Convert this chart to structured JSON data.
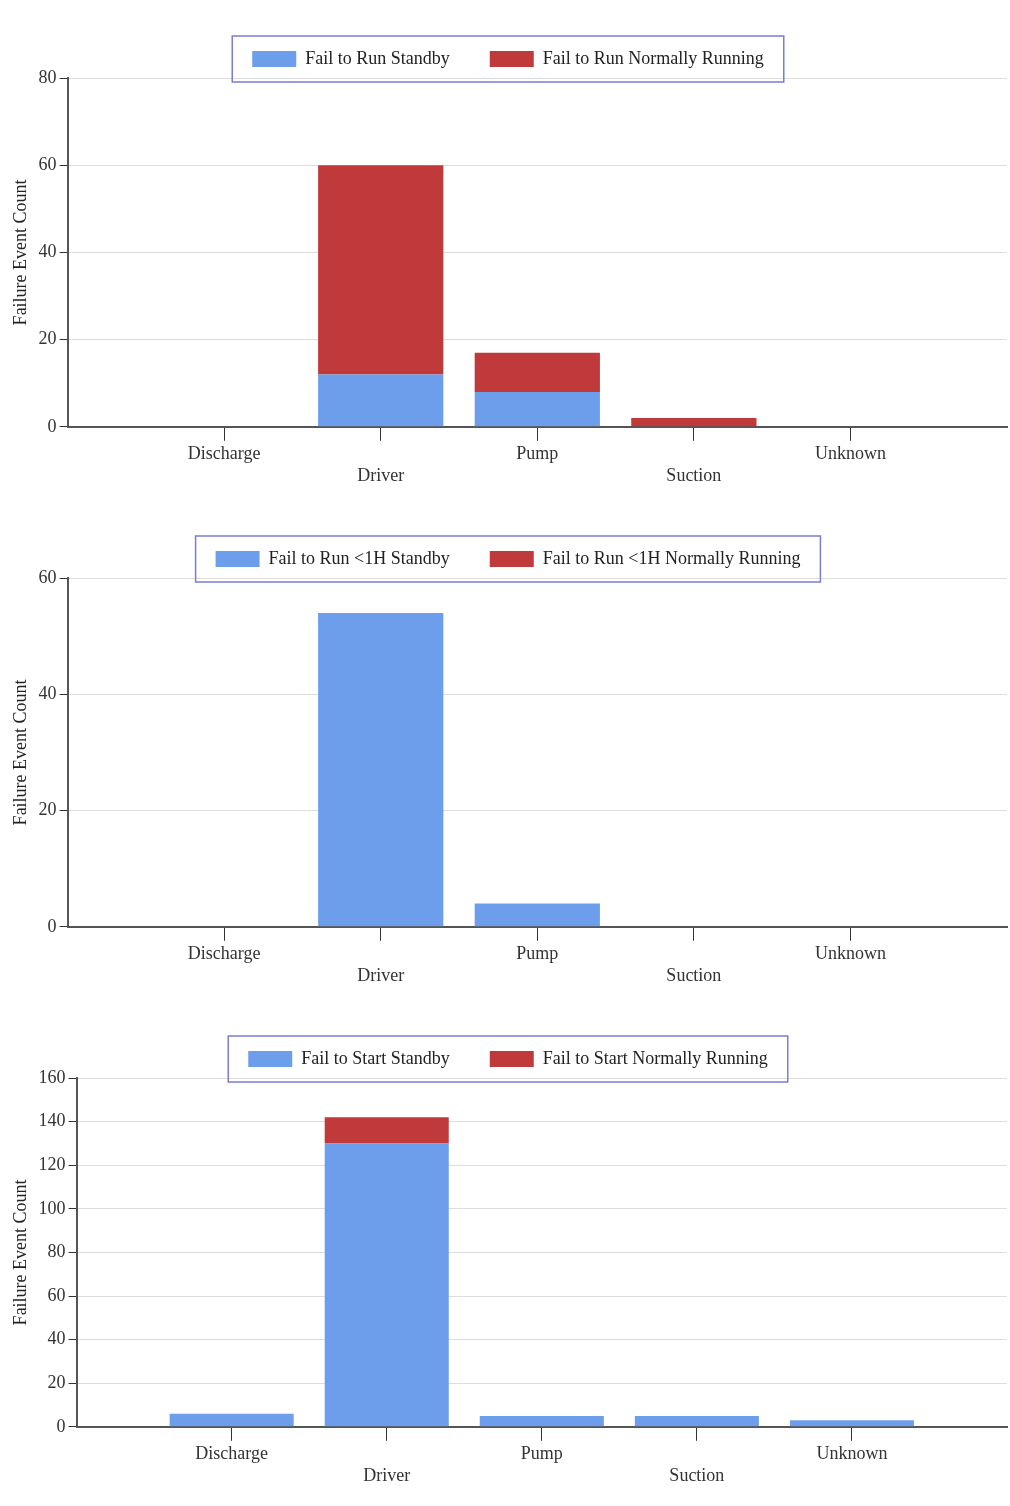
{
  "chart_data": [
    {
      "type": "bar",
      "stacked": true,
      "categories": [
        "Discharge",
        "Driver",
        "Pump",
        "Suction",
        "Unknown"
      ],
      "series": [
        {
          "name": "Fail to Run Standby",
          "color": "#6d9eeb",
          "values": [
            0,
            12,
            8,
            0,
            0
          ]
        },
        {
          "name": "Fail to Run Normally Running",
          "color": "#c0393b",
          "values": [
            0,
            48,
            9,
            2,
            0
          ]
        }
      ],
      "ylabel": "Failure Event Count",
      "ylim": [
        0,
        80
      ],
      "yticks": [
        0,
        20,
        40,
        60,
        80
      ],
      "grid": "y",
      "legend": "top"
    },
    {
      "type": "bar",
      "stacked": true,
      "categories": [
        "Discharge",
        "Driver",
        "Pump",
        "Suction",
        "Unknown"
      ],
      "series": [
        {
          "name": "Fail to Run <1H Standby",
          "color": "#6d9eeb",
          "values": [
            0,
            54,
            4,
            0,
            0
          ]
        },
        {
          "name": "Fail to Run <1H Normally Running",
          "color": "#c0393b",
          "values": [
            0,
            0,
            0,
            0,
            0
          ]
        }
      ],
      "ylabel": "Failure Event Count",
      "ylim": [
        0,
        60
      ],
      "yticks": [
        0,
        20,
        40,
        60
      ],
      "grid": "y",
      "legend": "top"
    },
    {
      "type": "bar",
      "stacked": true,
      "categories": [
        "Discharge",
        "Driver",
        "Pump",
        "Suction",
        "Unknown"
      ],
      "series": [
        {
          "name": "Fail to Start Standby",
          "color": "#6d9eeb",
          "values": [
            6,
            130,
            5,
            5,
            3
          ]
        },
        {
          "name": "Fail to Start Normally Running",
          "color": "#c0393b",
          "values": [
            0,
            12,
            0,
            0,
            0
          ]
        }
      ],
      "ylabel": "Failure Event Count",
      "ylim": [
        0,
        160
      ],
      "yticks": [
        0,
        20,
        40,
        60,
        80,
        100,
        120,
        140,
        160
      ],
      "grid": "y",
      "legend": "top"
    }
  ]
}
